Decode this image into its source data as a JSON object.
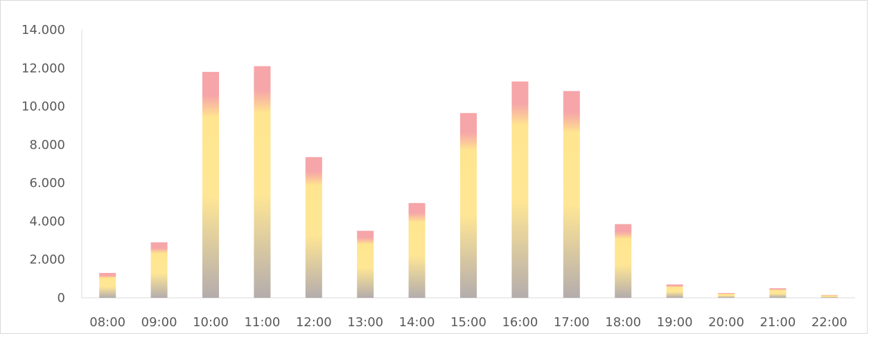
{
  "chart_data": {
    "type": "bar",
    "categories": [
      "08:00",
      "09:00",
      "10:00",
      "11:00",
      "12:00",
      "13:00",
      "14:00",
      "15:00",
      "16:00",
      "17:00",
      "18:00",
      "19:00",
      "20:00",
      "21:00",
      "22:00"
    ],
    "values": [
      1300,
      2900,
      11800,
      12100,
      7350,
      3500,
      4950,
      9650,
      11300,
      10800,
      3850,
      700,
      250,
      500,
      150
    ],
    "ylim": [
      0,
      14000
    ],
    "yticks": [
      0,
      2000,
      4000,
      6000,
      8000,
      10000,
      12000,
      14000
    ],
    "ytick_labels": [
      "0",
      "2.000",
      "4.000",
      "6.000",
      "8.000",
      "10.000",
      "12.000",
      "14.000"
    ],
    "grid": false,
    "colors": {
      "bar_top": "#f4959a",
      "bar_mid": "#ffe58f",
      "bar_bottom": "#b0a8a8",
      "axis": "#d9d9d9",
      "text": "#595959"
    }
  }
}
